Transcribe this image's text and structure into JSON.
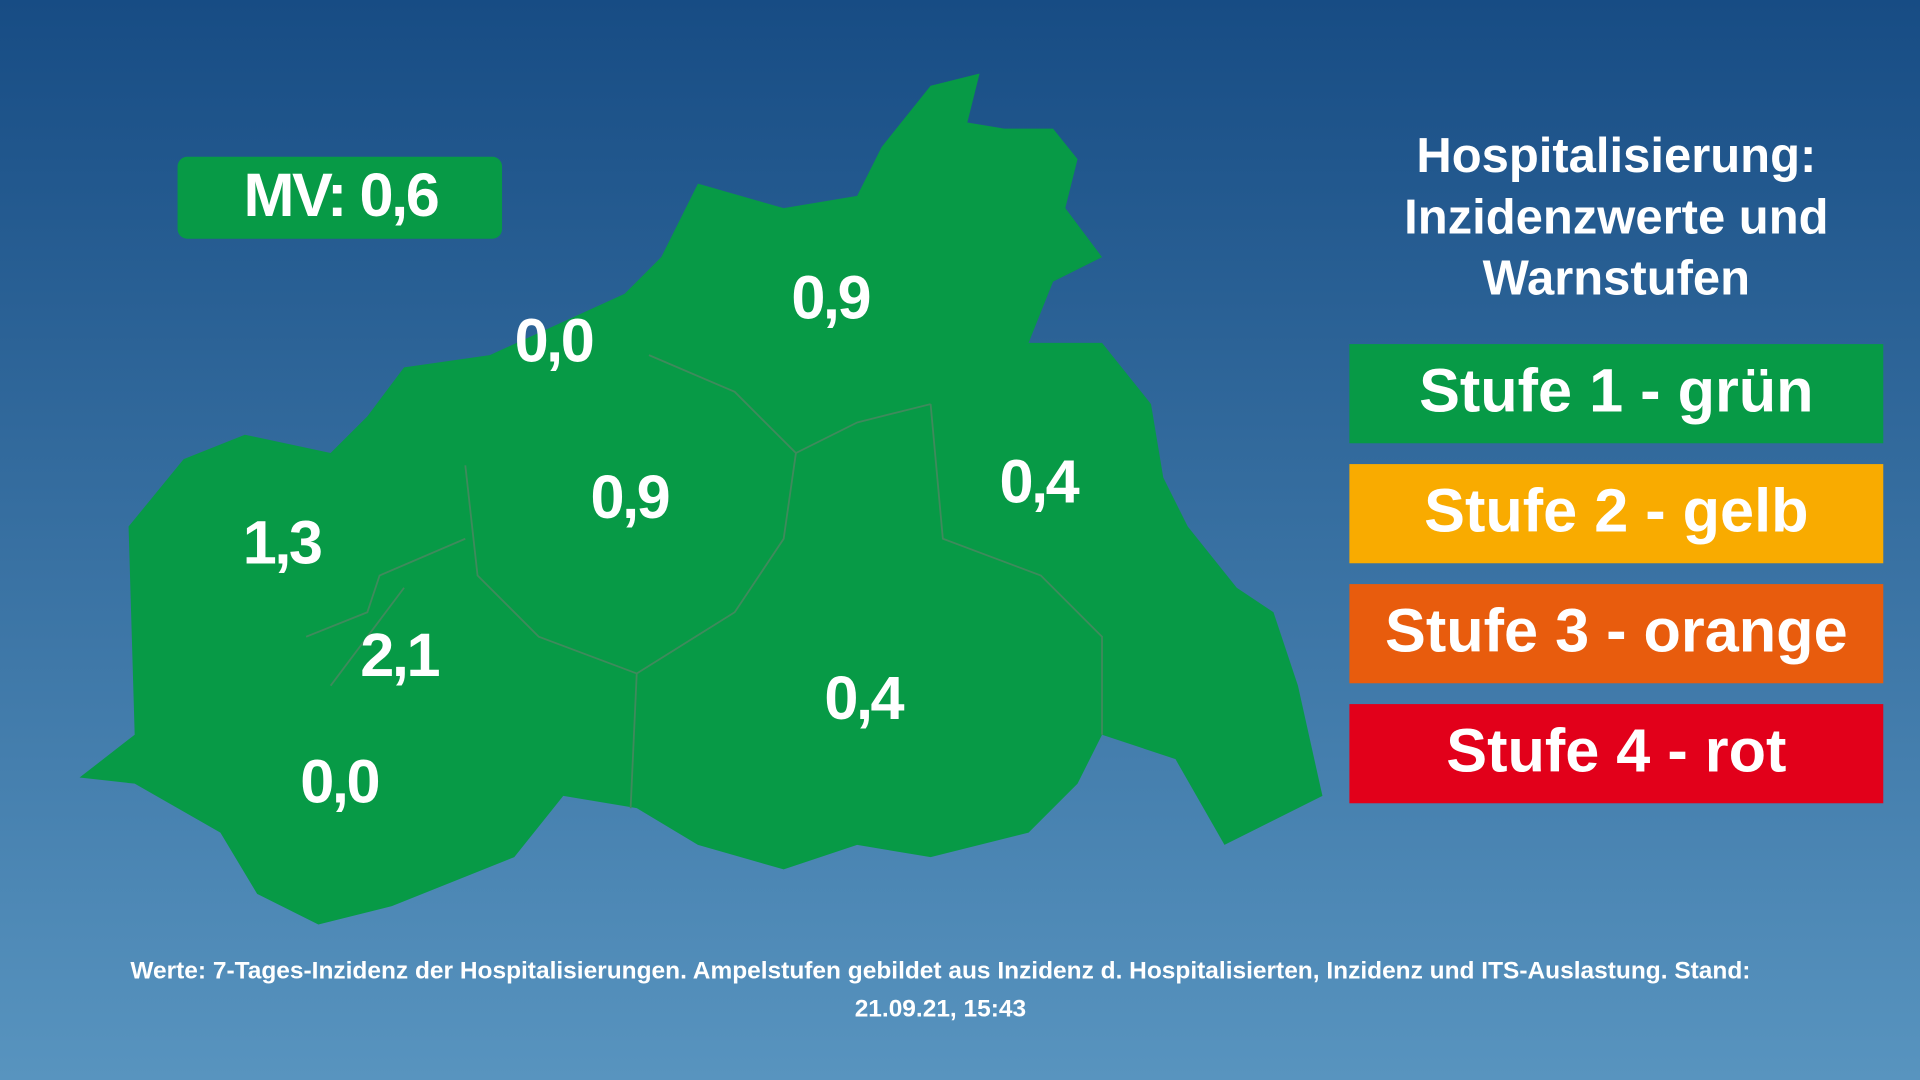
{
  "header": {
    "title_lines": [
      "Hospitalisierung:",
      "Inzidenzwerte und",
      "Warnstufen"
    ]
  },
  "state_badge": "MV: 0,6",
  "regions": [
    {
      "label": "0,0"
    },
    {
      "label": "0,9"
    },
    {
      "label": "1,3"
    },
    {
      "label": "0,9"
    },
    {
      "label": "0,4"
    },
    {
      "label": "2,1"
    },
    {
      "label": "0,4"
    },
    {
      "label": "0,0"
    }
  ],
  "legend": [
    "Stufe 1 - grün",
    "Stufe 2 - gelb",
    "Stufe 3 - orange",
    "Stufe 4 - rot"
  ],
  "footer": {
    "note": "Werte: 7-Tages-Inzidenz der Hospitalisierungen. Ampelstufen gebildet aus Inzidenz d. Hospitalisierten, Inzidenz und ITS-Auslastung. Stand:",
    "date": "21.09.21, 15:43"
  }
}
